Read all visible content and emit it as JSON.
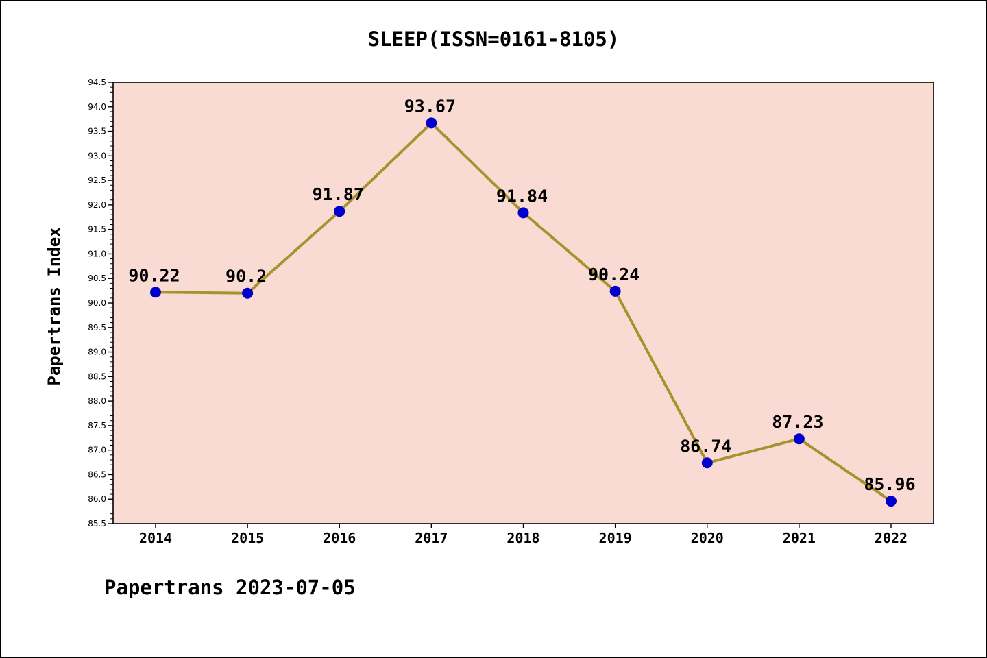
{
  "page": {
    "title": "SLEEP(ISSN=0161-8105)"
  },
  "footer": {
    "text": "Papertrans 2023-07-05"
  },
  "chart_data": {
    "type": "line",
    "title": "SLEEP(ISSN=0161-8105)",
    "xlabel": "",
    "ylabel": "Papertrans Index",
    "x": [
      2014,
      2015,
      2016,
      2017,
      2018,
      2019,
      2020,
      2021,
      2022
    ],
    "values": [
      90.22,
      90.2,
      91.87,
      93.67,
      91.84,
      90.24,
      86.74,
      87.23,
      85.96
    ],
    "point_labels": [
      "90.22",
      "90.2",
      "91.87",
      "93.67",
      "91.84",
      "90.24",
      "86.74",
      "87.23",
      "85.96"
    ],
    "ylim": [
      85.5,
      94.5
    ],
    "ytick_step": 0.5,
    "minor_tick_step": 0.1,
    "grid": false,
    "legend": null,
    "colors": {
      "plot_bg": "#fadbd4",
      "line": "#a8922d",
      "marker": "#0000cd",
      "axis": "#000000",
      "text": "#000000"
    }
  }
}
